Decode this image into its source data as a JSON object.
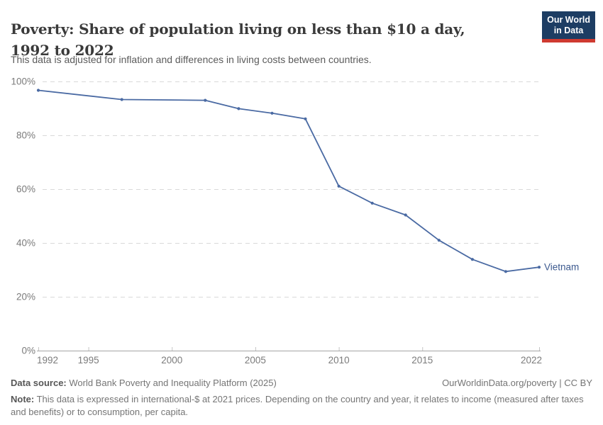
{
  "header": {
    "title": "Poverty: Share of population living on less than $10 a day, 1992 to 2022",
    "subtitle": "This data is adjusted for inflation and differences in living costs between countries.",
    "logo": {
      "line1": "Our World",
      "line2": "in Data",
      "bg": "#1d3d63",
      "accent": "#cf3a30"
    }
  },
  "chart_data": {
    "type": "line",
    "title": "Poverty: Share of population living on less than $10 a day, 1992 to 2022",
    "xlabel": "",
    "ylabel": "",
    "x": [
      1992,
      1997,
      2002,
      2004,
      2006,
      2008,
      2010,
      2012,
      2014,
      2016,
      2018,
      2020,
      2022
    ],
    "series": [
      {
        "name": "Vietnam",
        "color": "#4a6aa3",
        "label_color": "#3d5a8f",
        "values": [
          96.7,
          93.3,
          93.0,
          89.9,
          88.2,
          86.1,
          61.1,
          54.8,
          50.4,
          41.0,
          33.9,
          29.4,
          31.0
        ]
      }
    ],
    "xlim": [
      1992,
      2022
    ],
    "ylim": [
      0,
      100
    ],
    "x_ticks": [
      1992,
      1995,
      2000,
      2005,
      2010,
      2015,
      2022
    ],
    "y_ticks": [
      0,
      20,
      40,
      60,
      80,
      100
    ],
    "y_suffix": "%",
    "grid": "horizontal-dashed",
    "legend": "end-of-line-label"
  },
  "footer": {
    "datasource_label": "Data source:",
    "datasource_value": " World Bank Poverty and Inequality Platform (2025)",
    "link": "OurWorldinData.org/poverty | CC BY",
    "note_label": "Note:",
    "note_value": " This data is expressed in international-$ at 2021 prices. Depending on the country and year, it relates to income (measured after taxes and benefits) or to consumption, per capita."
  }
}
